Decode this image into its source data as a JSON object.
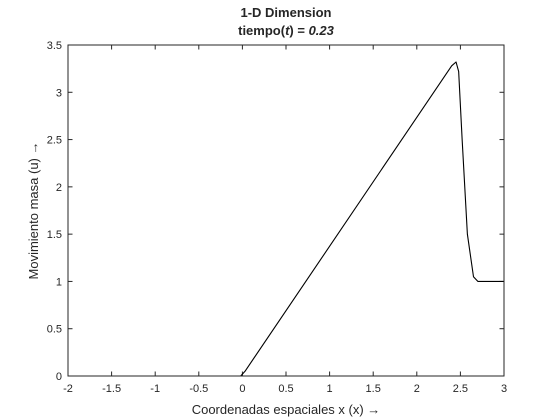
{
  "chart_data": {
    "type": "line",
    "title": "1-D Dimension",
    "subtitle_prefix": "tiempo(",
    "subtitle_var": "t",
    "subtitle_mid": ") = ",
    "subtitle_value": "0.23",
    "xlabel": "Coordenadas espaciales x (x) →",
    "ylabel": "Movimiento masa (u) →",
    "xlim": [
      -2,
      3
    ],
    "ylim": [
      0,
      3.5
    ],
    "xticks": [
      -2,
      -1.5,
      -1,
      -0.5,
      0,
      0.5,
      1,
      1.5,
      2,
      2.5,
      3
    ],
    "xtick_labels": [
      "-2",
      "-1.5",
      "-1",
      "-0.5",
      "0",
      "0.5",
      "1",
      "1.5",
      "2",
      "2.5",
      "3"
    ],
    "yticks": [
      0,
      0.5,
      1,
      1.5,
      2,
      2.5,
      3,
      3.5
    ],
    "ytick_labels": [
      "0",
      "0.5",
      "1",
      "1.5",
      "2",
      "2.5",
      "3",
      "3.5"
    ],
    "grid": false,
    "legend": "none",
    "line_color": "#000000",
    "series": [
      {
        "x": [
          -2,
          -0.02,
          0,
          0.03,
          2.4,
          2.45,
          2.48,
          2.52,
          2.58,
          2.65,
          2.7,
          2.8,
          3
        ],
        "y": [
          0,
          0,
          0.02,
          0.05,
          3.28,
          3.32,
          3.22,
          2.5,
          1.5,
          1.05,
          1.0,
          1.0,
          1.0
        ]
      }
    ]
  }
}
